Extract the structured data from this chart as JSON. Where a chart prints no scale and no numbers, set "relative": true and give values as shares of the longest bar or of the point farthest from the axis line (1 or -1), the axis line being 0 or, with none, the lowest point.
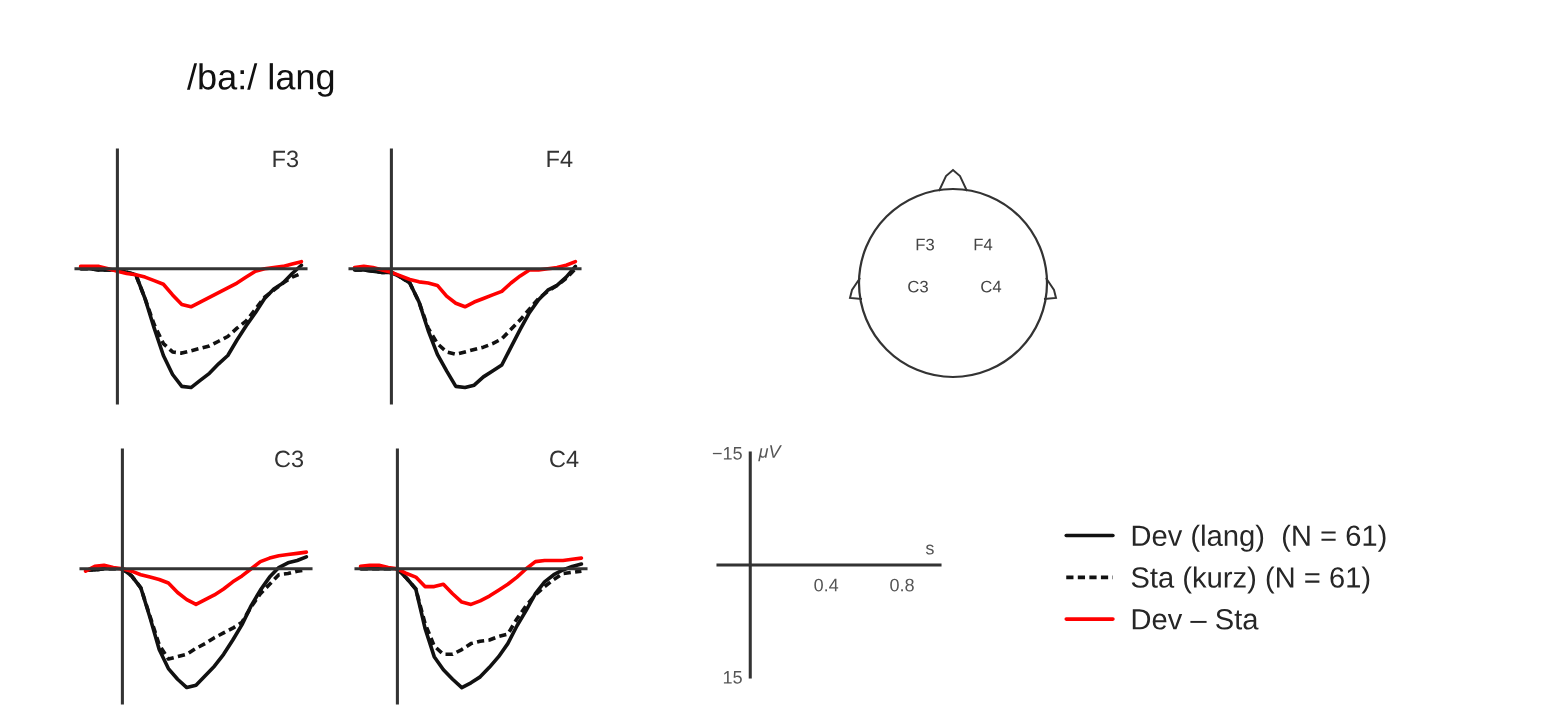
{
  "chart_data": [
    {
      "type": "line",
      "title": "F3",
      "relative": true,
      "categories": [
        null,
        null,
        null,
        null,
        null,
        null,
        null,
        null,
        null,
        null,
        null,
        null,
        null,
        null,
        null,
        null,
        null,
        null,
        null,
        null,
        null,
        null,
        null,
        null,
        null
      ],
      "series": [
        {
          "color": "#111111",
          "line_style": "solid",
          "values": [
            0,
            0,
            -0.01,
            -0.01,
            -0.01,
            -0.03,
            -0.05,
            -0.25,
            -0.5,
            -0.73,
            -0.89,
            -0.99,
            -1.0,
            -0.94,
            -0.88,
            -0.8,
            -0.73,
            -0.6,
            -0.48,
            -0.37,
            -0.25,
            -0.17,
            -0.12,
            -0.04,
            0.03
          ]
        },
        {
          "color": "#111111",
          "line_style": "dotted",
          "values": [
            0,
            0,
            -0.01,
            -0.01,
            -0.01,
            -0.03,
            -0.05,
            -0.25,
            -0.47,
            -0.63,
            -0.7,
            -0.71,
            -0.69,
            -0.67,
            -0.65,
            -0.61,
            -0.57,
            -0.5,
            -0.44,
            -0.34,
            -0.24,
            -0.18,
            -0.12,
            -0.07,
            -0.04
          ]
        },
        {
          "color": "#ff0000",
          "line_style": "solid",
          "values": [
            0.02,
            0.02,
            0.02,
            0,
            -0.02,
            -0.04,
            -0.05,
            -0.07,
            -0.1,
            -0.13,
            -0.22,
            -0.3,
            -0.32,
            -0.28,
            -0.24,
            -0.2,
            -0.16,
            -0.12,
            -0.07,
            -0.02,
            0,
            0.01,
            0.02,
            0.04,
            0.06
          ]
        }
      ]
    },
    {
      "type": "line",
      "title": "F4",
      "relative": true,
      "categories": [
        null,
        null,
        null,
        null,
        null,
        null,
        null,
        null,
        null,
        null,
        null,
        null,
        null,
        null,
        null,
        null,
        null,
        null,
        null,
        null,
        null,
        null,
        null,
        null,
        null
      ],
      "series": [
        {
          "color": "#111111",
          "line_style": "solid",
          "values": [
            -0.01,
            -0.01,
            -0.02,
            -0.03,
            -0.03,
            -0.07,
            -0.12,
            -0.28,
            -0.52,
            -0.72,
            -0.86,
            -0.99,
            -1.0,
            -0.98,
            -0.91,
            -0.86,
            -0.81,
            -0.66,
            -0.51,
            -0.37,
            -0.26,
            -0.18,
            -0.14,
            -0.07,
            0.02
          ]
        },
        {
          "color": "#111111",
          "line_style": "dotted",
          "values": [
            -0.01,
            -0.01,
            -0.02,
            -0.03,
            -0.03,
            -0.07,
            -0.12,
            -0.28,
            -0.5,
            -0.63,
            -0.7,
            -0.72,
            -0.7,
            -0.68,
            -0.66,
            -0.63,
            -0.59,
            -0.51,
            -0.43,
            -0.34,
            -0.25,
            -0.19,
            -0.14,
            -0.08,
            0
          ]
        },
        {
          "color": "#ff0000",
          "line_style": "solid",
          "values": [
            0.01,
            0.02,
            0.01,
            -0.01,
            -0.03,
            -0.06,
            -0.09,
            -0.11,
            -0.12,
            -0.14,
            -0.23,
            -0.29,
            -0.32,
            -0.28,
            -0.25,
            -0.22,
            -0.19,
            -0.12,
            -0.06,
            -0.01,
            -0.01,
            0,
            0.01,
            0.03,
            0.06
          ]
        }
      ]
    },
    {
      "type": "line",
      "title": "C3",
      "relative": true,
      "categories": [
        null,
        null,
        null,
        null,
        null,
        null,
        null,
        null,
        null,
        null,
        null,
        null,
        null,
        null,
        null,
        null,
        null,
        null,
        null,
        null,
        null,
        null,
        null,
        null,
        null
      ],
      "series": [
        {
          "color": "#111111",
          "line_style": "solid",
          "values": [
            -0.01,
            -0.01,
            0,
            0,
            0,
            -0.06,
            -0.16,
            -0.41,
            -0.68,
            -0.84,
            -0.93,
            -1.0,
            -0.98,
            -0.9,
            -0.82,
            -0.72,
            -0.6,
            -0.47,
            -0.31,
            -0.18,
            -0.07,
            0.01,
            0.05,
            0.07,
            0.1
          ]
        },
        {
          "color": "#111111",
          "line_style": "dotted",
          "values": [
            -0.01,
            -0.01,
            0,
            0,
            0,
            -0.06,
            -0.16,
            -0.4,
            -0.64,
            -0.76,
            -0.74,
            -0.72,
            -0.67,
            -0.63,
            -0.58,
            -0.54,
            -0.5,
            -0.45,
            -0.32,
            -0.21,
            -0.13,
            -0.05,
            -0.04,
            -0.02,
            -0.01
          ]
        },
        {
          "color": "#ff0000",
          "line_style": "solid",
          "values": [
            -0.02,
            0.02,
            0.03,
            0.01,
            0,
            -0.02,
            -0.05,
            -0.07,
            -0.09,
            -0.12,
            -0.2,
            -0.26,
            -0.3,
            -0.26,
            -0.22,
            -0.17,
            -0.11,
            -0.06,
            0,
            0.06,
            0.09,
            0.11,
            0.12,
            0.13,
            0.14
          ]
        }
      ]
    },
    {
      "type": "line",
      "title": "C4",
      "relative": true,
      "legend": "right",
      "categories": [
        null,
        null,
        null,
        null,
        null,
        null,
        null,
        null,
        null,
        null,
        null,
        null,
        null,
        null,
        null,
        null,
        null,
        null,
        null,
        null,
        null,
        null,
        null,
        null,
        null
      ],
      "series": [
        {
          "name": "Dev (lang)  (N = 61)",
          "color": "#111111",
          "line_style": "solid",
          "values": [
            0,
            0,
            0,
            0,
            0,
            -0.08,
            -0.17,
            -0.5,
            -0.74,
            -0.85,
            -0.93,
            -1.0,
            -0.96,
            -0.91,
            -0.83,
            -0.74,
            -0.63,
            -0.48,
            -0.35,
            -0.21,
            -0.11,
            -0.05,
            -0.01,
            0.02,
            0.04
          ]
        },
        {
          "name": "Sta (kurz) (N = 61)",
          "color": "#111111",
          "line_style": "dotted",
          "values": [
            0,
            0,
            0,
            0,
            0,
            -0.08,
            -0.17,
            -0.46,
            -0.65,
            -0.72,
            -0.72,
            -0.68,
            -0.63,
            -0.61,
            -0.6,
            -0.57,
            -0.55,
            -0.42,
            -0.31,
            -0.22,
            -0.15,
            -0.09,
            -0.04,
            -0.03,
            -0.02
          ]
        },
        {
          "name": "Dev – Sta",
          "color": "#ff0000",
          "line_style": "solid",
          "values": [
            0.02,
            0.03,
            0.03,
            0.01,
            0,
            -0.04,
            -0.07,
            -0.15,
            -0.15,
            -0.13,
            -0.21,
            -0.28,
            -0.3,
            -0.27,
            -0.23,
            -0.18,
            -0.13,
            -0.07,
            0,
            0.06,
            0.07,
            0.07,
            0.07,
            0.08,
            0.09
          ]
        }
      ]
    },
    {
      "type": "line",
      "xlabel": "s",
      "ylabel": "μV",
      "xlim": [
        -0.17,
        1.0
      ],
      "ylim": [
        15,
        -15
      ],
      "xticks": [
        {
          "value": 0,
          "label": null
        },
        0.4,
        0.8
      ],
      "yticks": [
        {
          "value": -15,
          "label": "−15"
        },
        15
      ]
    },
    {
      "type": "other",
      "title": "/ba:/ lang",
      "annotations": [
        "F3",
        "F4",
        "C3",
        "C4"
      ]
    }
  ]
}
